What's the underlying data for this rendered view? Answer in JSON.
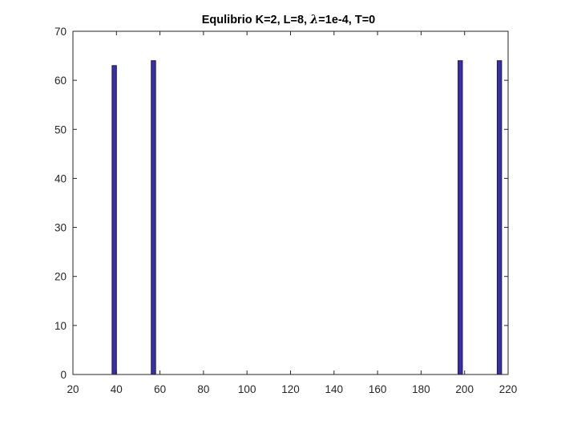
{
  "chart_data": {
    "type": "bar",
    "title": {
      "prefix": "Equlibrio K=2, L=8, ",
      "symbol": "λ",
      "suffix": "=1e-4, T=0"
    },
    "xlabel": "",
    "ylabel": "",
    "xlim": [
      20,
      220
    ],
    "ylim": [
      0,
      70
    ],
    "xticks": [
      20,
      40,
      60,
      80,
      100,
      120,
      140,
      160,
      180,
      200,
      220
    ],
    "yticks": [
      0,
      10,
      20,
      30,
      40,
      50,
      60,
      70
    ],
    "bar_width": 2,
    "grid": false,
    "box": true,
    "bar_color": "#3a2fa3",
    "bar_edge_color": "#1a1a55",
    "x": [
      39,
      57,
      198,
      216
    ],
    "values": [
      63,
      64,
      64,
      64
    ]
  }
}
